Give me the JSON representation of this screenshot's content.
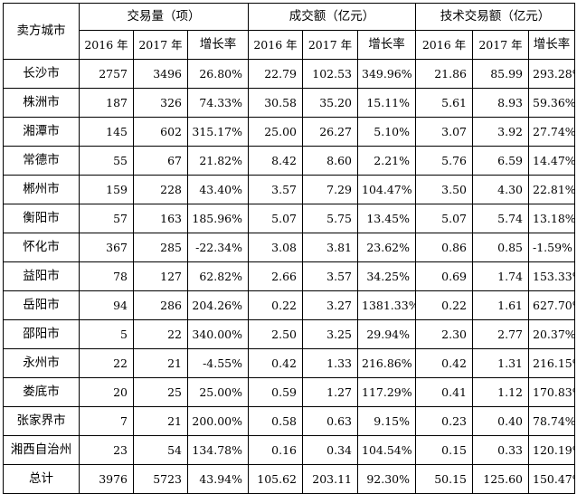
{
  "header": {
    "city_label": "卖方城市",
    "groups": [
      "交易量（项）",
      "成交额（亿元）",
      "技术交易额（亿元）"
    ],
    "sub": [
      "2016 年",
      "2017 年",
      "增长率",
      "2016 年",
      "2017 年",
      "增长率",
      "2016 年",
      "2017 年",
      "增长率"
    ]
  },
  "rows": [
    {
      "city": "长沙市",
      "cells": [
        "2757",
        "3496",
        "26.80%",
        "22.79",
        "102.53",
        "349.96%",
        "21.86",
        "85.99",
        "293.28%"
      ]
    },
    {
      "city": "株洲市",
      "cells": [
        "187",
        "326",
        "74.33%",
        "30.58",
        "35.20",
        "15.11%",
        "5.61",
        "8.93",
        "59.36%"
      ]
    },
    {
      "city": "湘潭市",
      "cells": [
        "145",
        "602",
        "315.17%",
        "25.00",
        "26.27",
        "5.10%",
        "3.07",
        "3.92",
        "27.74%"
      ]
    },
    {
      "city": "常德市",
      "cells": [
        "55",
        "67",
        "21.82%",
        "8.42",
        "8.60",
        "2.21%",
        "5.76",
        "6.59",
        "14.47%"
      ]
    },
    {
      "city": "郴州市",
      "cells": [
        "159",
        "228",
        "43.40%",
        "3.57",
        "7.29",
        "104.47%",
        "3.50",
        "4.30",
        "22.81%"
      ]
    },
    {
      "city": "衡阳市",
      "cells": [
        "57",
        "163",
        "185.96%",
        "5.07",
        "5.75",
        "13.45%",
        "5.07",
        "5.74",
        "13.18%"
      ]
    },
    {
      "city": "怀化市",
      "cells": [
        "367",
        "285",
        "-22.34%",
        "3.08",
        "3.81",
        "23.62%",
        "0.86",
        "0.85",
        "-1.59%"
      ]
    },
    {
      "city": "益阳市",
      "cells": [
        "78",
        "127",
        "62.82%",
        "2.66",
        "3.57",
        "34.25%",
        "0.69",
        "1.74",
        "153.33%"
      ]
    },
    {
      "city": "岳阳市",
      "cells": [
        "94",
        "286",
        "204.26%",
        "0.22",
        "3.27",
        "1381.33%",
        "0.22",
        "1.61",
        "627.70%"
      ]
    },
    {
      "city": "邵阳市",
      "cells": [
        "5",
        "22",
        "340.00%",
        "2.50",
        "3.25",
        "29.94%",
        "2.30",
        "2.77",
        "20.37%"
      ]
    },
    {
      "city": "永州市",
      "cells": [
        "22",
        "21",
        "-4.55%",
        "0.42",
        "1.33",
        "216.86%",
        "0.42",
        "1.31",
        "216.15%"
      ]
    },
    {
      "city": "娄底市",
      "cells": [
        "20",
        "25",
        "25.00%",
        "0.59",
        "1.27",
        "117.29%",
        "0.41",
        "1.12",
        "170.83%"
      ]
    },
    {
      "city": "张家界市",
      "cells": [
        "7",
        "21",
        "200.00%",
        "0.58",
        "0.63",
        "9.15%",
        "0.23",
        "0.40",
        "78.74%"
      ]
    },
    {
      "city": "湘西自治州",
      "cells": [
        "23",
        "54",
        "134.78%",
        "0.16",
        "0.34",
        "104.54%",
        "0.15",
        "0.33",
        "120.19%"
      ]
    },
    {
      "city": "总计",
      "cells": [
        "3976",
        "5723",
        "43.94%",
        "105.62",
        "203.11",
        "92.30%",
        "50.15",
        "125.60",
        "150.47%"
      ]
    }
  ]
}
